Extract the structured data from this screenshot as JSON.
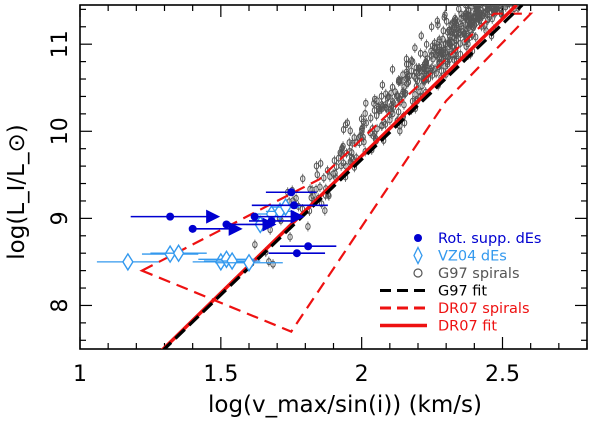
{
  "chart_data": {
    "type": "scatter",
    "title": "",
    "xlabel": "log(v_max/sin(i))  (km/s)",
    "ylabel": "log(L_I/L_⊙)",
    "xlim": [
      1.0,
      2.8
    ],
    "ylim": [
      7.5,
      11.45
    ],
    "x_ticks": [
      1,
      1.5,
      2,
      2.5
    ],
    "x_tick_labels": [
      "1",
      "1.5",
      "2",
      "2.5"
    ],
    "y_ticks": [
      8,
      9,
      10,
      11
    ],
    "y_tick_labels": [
      "8",
      "9",
      "10",
      "11"
    ],
    "grid": false,
    "legend_position": "lower-right",
    "colors": {
      "rot_supp": "#0000d0",
      "vz04": "#3399ee",
      "g97": "#555555",
      "dr07": "#ee1111",
      "g97_fit": "#000000"
    },
    "series": [
      {
        "name": "Rot. supp. dEs",
        "marker": "filled-circle",
        "points": [
          {
            "x": 1.32,
            "y": 9.02,
            "xerr_lo": 0.14,
            "xerr_hi": 0.0,
            "lower_limit_arrow": true
          },
          {
            "x": 1.4,
            "y": 8.88,
            "xerr_lo": 0.0,
            "xerr_hi": 0.0,
            "lower_limit_arrow": true
          },
          {
            "x": 1.52,
            "y": 8.93,
            "xerr_lo": 0.0,
            "xerr_hi": 0.0,
            "lower_limit_arrow": true
          },
          {
            "x": 1.62,
            "y": 9.02,
            "xerr_lo": 0.0,
            "xerr_hi": 0.0,
            "lower_limit_arrow": true
          },
          {
            "x": 1.68,
            "y": 8.97,
            "xerr_lo": 0.08,
            "xerr_hi": 0.08,
            "lower_limit_arrow": false
          },
          {
            "x": 1.75,
            "y": 9.3,
            "xerr_lo": 0.09,
            "xerr_hi": 0.09,
            "lower_limit_arrow": false
          },
          {
            "x": 1.76,
            "y": 9.15,
            "xerr_lo": 0.15,
            "xerr_hi": 0.12,
            "lower_limit_arrow": false
          },
          {
            "x": 1.81,
            "y": 8.68,
            "xerr_lo": 0.1,
            "xerr_hi": 0.1,
            "lower_limit_arrow": false
          },
          {
            "x": 1.77,
            "y": 8.6,
            "xerr_lo": 0.1,
            "xerr_hi": 0.1,
            "lower_limit_arrow": false
          }
        ]
      },
      {
        "name": "VZ04 dEs",
        "marker": "open-diamond",
        "points": [
          {
            "x": 1.17,
            "y": 8.5,
            "xerr": 0.11
          },
          {
            "x": 1.32,
            "y": 8.59,
            "xerr": 0.1
          },
          {
            "x": 1.35,
            "y": 8.6,
            "xerr": 0.1
          },
          {
            "x": 1.5,
            "y": 8.5,
            "xerr": 0.1
          },
          {
            "x": 1.52,
            "y": 8.53,
            "xerr": 0.1
          },
          {
            "x": 1.54,
            "y": 8.51,
            "xerr": 0.1
          },
          {
            "x": 1.6,
            "y": 8.49,
            "xerr": 0.12
          },
          {
            "x": 1.64,
            "y": 8.93,
            "xerr": 0.05
          },
          {
            "x": 1.68,
            "y": 9.05,
            "xerr": 0.05
          },
          {
            "x": 1.71,
            "y": 9.08,
            "xerr": 0.05
          },
          {
            "x": 1.73,
            "y": 9.13,
            "xerr": 0.05
          }
        ]
      },
      {
        "name": "G97 spirals",
        "marker": "open-circle",
        "n_points": 620,
        "trend": {
          "slope": 3.46,
          "intercept": 3.0
        },
        "x_range": [
          1.6,
          2.58
        ],
        "scatter_y": 0.17
      }
    ],
    "lines": [
      {
        "name": "G97 fit",
        "style": "dashed",
        "points": [
          [
            1.29,
            7.47
          ],
          [
            2.57,
            11.45
          ]
        ]
      },
      {
        "name": "DR07 spirals",
        "style": "dashed",
        "polygon": [
          [
            1.22,
            8.4
          ],
          [
            1.85,
            9.45
          ],
          [
            2.47,
            11.35
          ],
          [
            2.6,
            11.35
          ],
          [
            2.3,
            10.35
          ],
          [
            1.75,
            7.7
          ]
        ]
      },
      {
        "name": "DR07 fit",
        "style": "solid",
        "points": [
          [
            1.28,
            7.45
          ],
          [
            2.55,
            11.45
          ]
        ]
      }
    ],
    "legend": [
      {
        "label": "Rot. supp. dEs",
        "symbol": "filled-circle",
        "color": "#0000d0"
      },
      {
        "label": "VZ04 dEs",
        "symbol": "open-diamond",
        "color": "#3399ee"
      },
      {
        "label": "G97 spirals",
        "symbol": "open-circle",
        "color": "#555555"
      },
      {
        "label": "G97 fit",
        "symbol": "dashed-line",
        "color": "#000000"
      },
      {
        "label": "DR07 spirals",
        "symbol": "dashed-line",
        "color": "#ee1111"
      },
      {
        "label": "DR07 fit",
        "symbol": "solid-line",
        "color": "#ee1111"
      }
    ]
  }
}
